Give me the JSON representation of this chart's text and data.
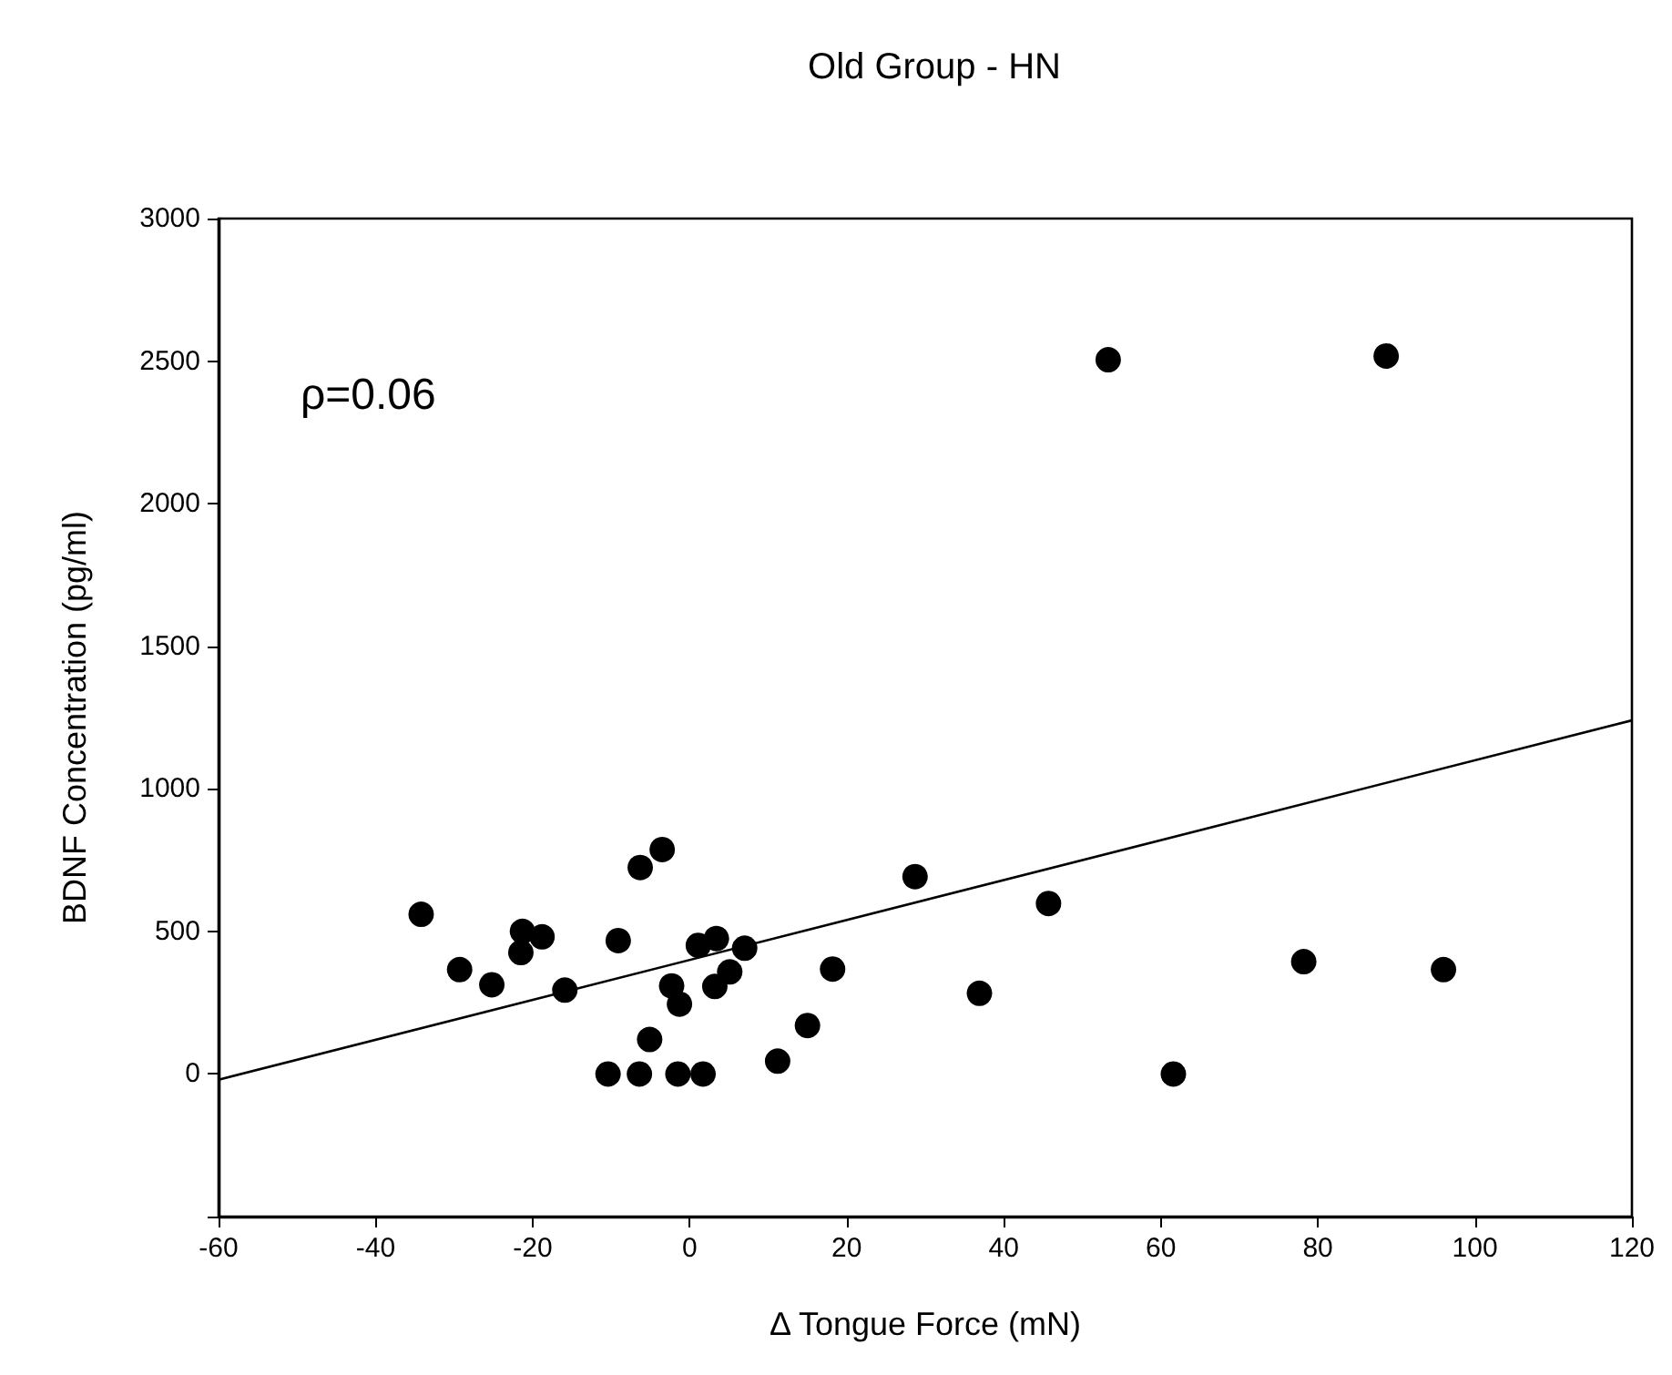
{
  "chart_data": {
    "type": "scatter",
    "title": "Old Group - HN",
    "xlabel": "Δ Tongue Force (mN)",
    "ylabel": "BDNF Concentration (pg/ml)",
    "annotations": [
      "ρ=0.06"
    ],
    "xlim": [
      -60,
      120
    ],
    "xticks": [
      -60,
      -40,
      -20,
      0,
      20,
      40,
      60,
      80,
      100,
      120
    ],
    "ylim": [
      -500,
      3000
    ],
    "yticks": [
      {
        "value": -500,
        "label": null
      },
      0,
      500,
      1000,
      1500,
      2000,
      2500,
      3000
    ],
    "grid": false,
    "marker": "circle",
    "series": [
      {
        "color": "#000000",
        "x": [
          -34.2,
          -29.3,
          -25.2,
          -21.3,
          -21.5,
          -18.8,
          -15.9,
          -9.1,
          -6.3,
          -3.5,
          -10.4,
          -6.4,
          -5.1,
          -2.3,
          -1.3,
          -1.5,
          1.7,
          1.1,
          3.4,
          3.2,
          5.1,
          7.0,
          11.2,
          15.0,
          18.2,
          28.7,
          45.7,
          36.9,
          61.6,
          78.2,
          96.0,
          53.3,
          88.7
        ],
        "values": [
          560,
          366,
          313,
          500,
          426,
          481,
          294,
          468,
          724,
          787,
          0,
          0,
          121,
          309,
          245,
          0,
          0,
          451,
          475,
          307,
          358,
          441,
          45,
          170,
          368,
          692,
          598,
          283,
          0,
          394,
          366,
          2505,
          2518
        ]
      },
      {
        "type": "line",
        "color": "#000000",
        "marker": "none",
        "line_style": "solid",
        "x": [
          -60,
          120
        ],
        "values": [
          -20,
          1240
        ]
      }
    ]
  }
}
